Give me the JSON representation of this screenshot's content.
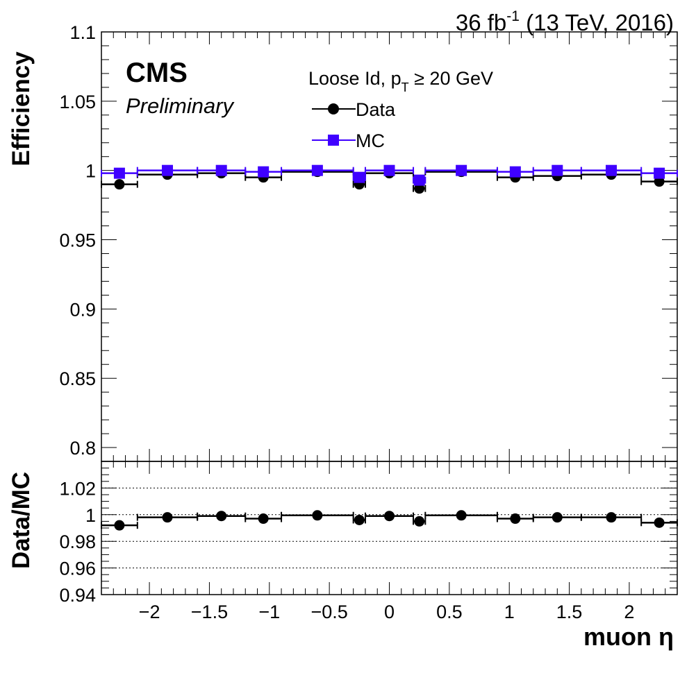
{
  "header": {
    "lumi_prefix": "36 fb",
    "lumi_exp": "-1",
    "lumi_suffix": " (13 TeV, 2016)"
  },
  "labels": {
    "experiment": "CMS",
    "status": "Preliminary",
    "selection_prefix": "Loose Id, p",
    "selection_sub": "T",
    "selection_suffix": " ≥ 20 GeV"
  },
  "chart_data": [
    {
      "type": "scatter",
      "ylabel": "Efficiency",
      "xlim": [
        -2.4,
        2.4
      ],
      "ylim": [
        0.79,
        1.1
      ],
      "yticks": [
        0.8,
        0.85,
        0.9,
        0.95,
        1,
        1.05,
        1.1
      ],
      "ytick_labels": [
        "0.8",
        "0.85",
        "0.9",
        "0.95",
        "1",
        "1.05",
        "1.1"
      ],
      "legend_position": "top-center",
      "series": [
        {
          "name": "Data",
          "color": "#000000",
          "marker": "circle",
          "points": [
            {
              "x": -2.25,
              "xlo": -2.4,
              "xhi": -2.1,
              "y": 0.99
            },
            {
              "x": -1.85,
              "xlo": -2.1,
              "xhi": -1.6,
              "y": 0.997
            },
            {
              "x": -1.4,
              "xlo": -1.6,
              "xhi": -1.2,
              "y": 0.998
            },
            {
              "x": -1.05,
              "xlo": -1.2,
              "xhi": -0.9,
              "y": 0.995
            },
            {
              "x": -0.6,
              "xlo": -0.9,
              "xhi": -0.3,
              "y": 0.999
            },
            {
              "x": -0.25,
              "xlo": -0.3,
              "xhi": -0.2,
              "y": 0.99
            },
            {
              "x": 0.0,
              "xlo": -0.2,
              "xhi": 0.2,
              "y": 0.998
            },
            {
              "x": 0.25,
              "xlo": 0.2,
              "xhi": 0.3,
              "y": 0.987
            },
            {
              "x": 0.6,
              "xlo": 0.3,
              "xhi": 0.9,
              "y": 0.999
            },
            {
              "x": 1.05,
              "xlo": 0.9,
              "xhi": 1.2,
              "y": 0.995
            },
            {
              "x": 1.4,
              "xlo": 1.2,
              "xhi": 1.6,
              "y": 0.996
            },
            {
              "x": 1.85,
              "xlo": 1.6,
              "xhi": 2.1,
              "y": 0.997
            },
            {
              "x": 2.25,
              "xlo": 2.1,
              "xhi": 2.4,
              "y": 0.992
            }
          ]
        },
        {
          "name": "MC",
          "color": "#3f00ff",
          "marker": "square",
          "points": [
            {
              "x": -2.25,
              "xlo": -2.4,
              "xhi": -2.1,
              "y": 0.998
            },
            {
              "x": -1.85,
              "xlo": -2.1,
              "xhi": -1.6,
              "y": 1.0
            },
            {
              "x": -1.4,
              "xlo": -1.6,
              "xhi": -1.2,
              "y": 1.0
            },
            {
              "x": -1.05,
              "xlo": -1.2,
              "xhi": -0.9,
              "y": 0.999
            },
            {
              "x": -0.6,
              "xlo": -0.9,
              "xhi": -0.3,
              "y": 1.0
            },
            {
              "x": -0.25,
              "xlo": -0.3,
              "xhi": -0.2,
              "y": 0.995
            },
            {
              "x": 0.0,
              "xlo": -0.2,
              "xhi": 0.2,
              "y": 1.0
            },
            {
              "x": 0.25,
              "xlo": 0.2,
              "xhi": 0.3,
              "y": 0.993
            },
            {
              "x": 0.6,
              "xlo": 0.3,
              "xhi": 0.9,
              "y": 1.0
            },
            {
              "x": 1.05,
              "xlo": 0.9,
              "xhi": 1.2,
              "y": 0.999
            },
            {
              "x": 1.4,
              "xlo": 1.2,
              "xhi": 1.6,
              "y": 1.0
            },
            {
              "x": 1.85,
              "xlo": 1.6,
              "xhi": 2.1,
              "y": 1.0
            },
            {
              "x": 2.25,
              "xlo": 2.1,
              "xhi": 2.4,
              "y": 0.998
            }
          ]
        }
      ]
    },
    {
      "type": "scatter",
      "ylabel": "Data/MC",
      "xlabel": "muon η",
      "xlim": [
        -2.4,
        2.4
      ],
      "ylim": [
        0.94,
        1.04
      ],
      "yticks": [
        0.94,
        0.96,
        0.98,
        1,
        1.02
      ],
      "ytick_labels": [
        "0.94",
        "0.96",
        "0.98",
        "1",
        "1.02"
      ],
      "xticks": [
        -2,
        -1.5,
        -1,
        -0.5,
        0,
        0.5,
        1,
        1.5,
        2
      ],
      "xtick_labels": [
        "−2",
        "−1.5",
        "−1",
        "−0.5",
        "0",
        "0.5",
        "1",
        "1.5",
        "2"
      ],
      "reference_lines": [
        0.96,
        0.98,
        1,
        1.02
      ],
      "series": [
        {
          "color": "#000000",
          "marker": "circle",
          "points": [
            {
              "x": -2.25,
              "xlo": -2.4,
              "xhi": -2.1,
              "y": 0.992
            },
            {
              "x": -1.85,
              "xlo": -2.1,
              "xhi": -1.6,
              "y": 0.998
            },
            {
              "x": -1.4,
              "xlo": -1.6,
              "xhi": -1.2,
              "y": 0.999
            },
            {
              "x": -1.05,
              "xlo": -1.2,
              "xhi": -0.9,
              "y": 0.997
            },
            {
              "x": -0.6,
              "xlo": -0.9,
              "xhi": -0.3,
              "y": 0.9995
            },
            {
              "x": -0.25,
              "xlo": -0.3,
              "xhi": -0.2,
              "y": 0.996
            },
            {
              "x": 0.0,
              "xlo": -0.2,
              "xhi": 0.2,
              "y": 0.999
            },
            {
              "x": 0.25,
              "xlo": 0.2,
              "xhi": 0.3,
              "y": 0.995
            },
            {
              "x": 0.6,
              "xlo": 0.3,
              "xhi": 0.9,
              "y": 0.9995
            },
            {
              "x": 1.05,
              "xlo": 0.9,
              "xhi": 1.2,
              "y": 0.997
            },
            {
              "x": 1.4,
              "xlo": 1.2,
              "xhi": 1.6,
              "y": 0.998
            },
            {
              "x": 1.85,
              "xlo": 1.6,
              "xhi": 2.1,
              "y": 0.998
            },
            {
              "x": 2.25,
              "xlo": 2.1,
              "xhi": 2.4,
              "y": 0.994
            }
          ]
        }
      ]
    }
  ]
}
